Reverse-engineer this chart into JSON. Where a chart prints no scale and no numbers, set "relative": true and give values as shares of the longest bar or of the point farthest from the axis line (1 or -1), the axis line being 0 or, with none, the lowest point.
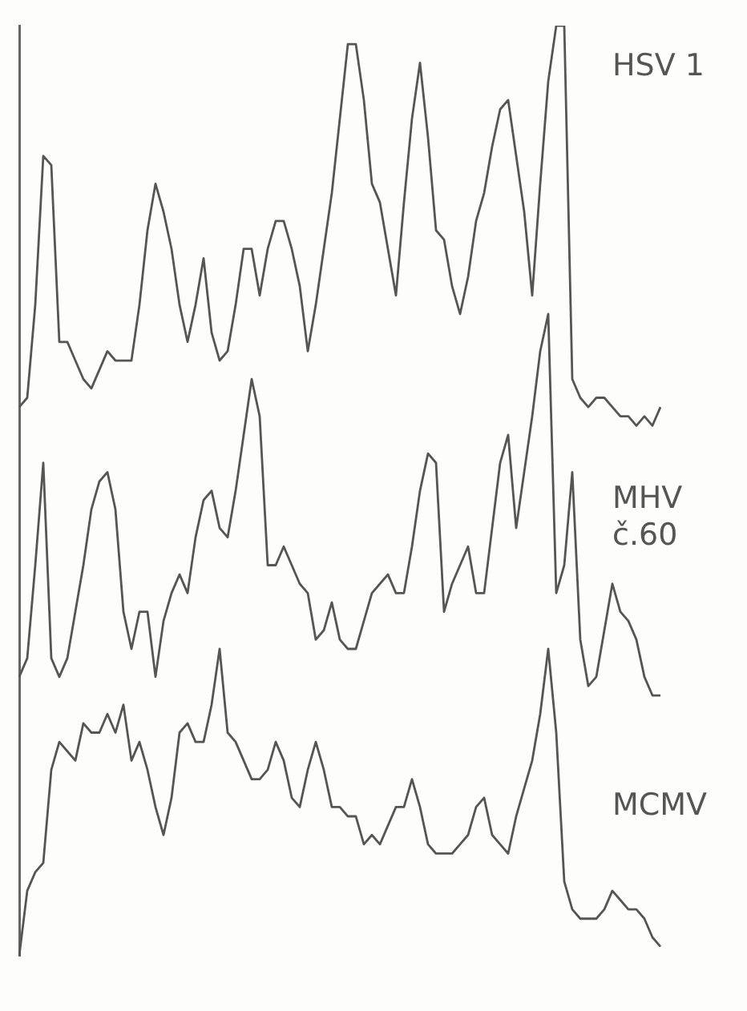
{
  "chart_data": {
    "type": "line",
    "relative": true,
    "grid": false,
    "legend": false,
    "marker": "none",
    "line_style": "solid",
    "categories": [
      null,
      null,
      null,
      null,
      null,
      null,
      null,
      null,
      null,
      null,
      null,
      null,
      null,
      null,
      null,
      null,
      null,
      null,
      null,
      null,
      null,
      null,
      null,
      null,
      null,
      null,
      null,
      null,
      null,
      null,
      null,
      null,
      null,
      null,
      null,
      null,
      null,
      null,
      null,
      null,
      null,
      null,
      null,
      null,
      null,
      null,
      null,
      null,
      null,
      null,
      null,
      null,
      null,
      null,
      null,
      null,
      null,
      null,
      null,
      null,
      null,
      null,
      null,
      null,
      null,
      null,
      null,
      null,
      null,
      null,
      null,
      null,
      null,
      null,
      null,
      null,
      null,
      null,
      null,
      null,
      null
    ],
    "series": [
      {
        "name": "HSV 1",
        "color": "#555555",
        "values": [
          0.59,
          0.6,
          0.7,
          0.86,
          0.85,
          0.66,
          0.66,
          0.64,
          0.62,
          0.61,
          0.63,
          0.65,
          0.64,
          0.64,
          0.64,
          0.7,
          0.78,
          0.83,
          0.8,
          0.76,
          0.7,
          0.66,
          0.7,
          0.75,
          0.67,
          0.64,
          0.65,
          0.7,
          0.76,
          0.76,
          0.71,
          0.76,
          0.79,
          0.79,
          0.76,
          0.72,
          0.65,
          0.7,
          0.76,
          0.82,
          0.9,
          0.98,
          0.98,
          0.92,
          0.83,
          0.81,
          0.76,
          0.71,
          0.81,
          0.9,
          0.96,
          0.88,
          0.78,
          0.77,
          0.72,
          0.69,
          0.73,
          0.79,
          0.82,
          0.87,
          0.91,
          0.92,
          0.86,
          0.8,
          0.71,
          0.83,
          0.94,
          1,
          1,
          0.62,
          0.6,
          0.59,
          0.6,
          0.6,
          0.59,
          0.58,
          0.58,
          0.57,
          0.58,
          0.57,
          0.59
        ]
      },
      {
        "name": "MHV č.60",
        "color": "#555555",
        "values": [
          0.3,
          0.32,
          0.42,
          0.53,
          0.32,
          0.3,
          0.32,
          0.37,
          0.42,
          0.48,
          0.51,
          0.52,
          0.48,
          0.37,
          0.33,
          0.37,
          0.37,
          0.3,
          0.36,
          0.39,
          0.41,
          0.39,
          0.45,
          0.49,
          0.5,
          0.46,
          0.45,
          0.5,
          0.56,
          0.62,
          0.58,
          0.42,
          0.42,
          0.44,
          0.42,
          0.4,
          0.39,
          0.34,
          0.35,
          0.38,
          0.34,
          0.33,
          0.33,
          0.36,
          0.39,
          0.4,
          0.41,
          0.39,
          0.39,
          0.44,
          0.5,
          0.54,
          0.53,
          0.37,
          0.4,
          0.42,
          0.44,
          0.39,
          0.39,
          0.46,
          0.53,
          0.56,
          0.46,
          0.52,
          0.58,
          0.65,
          0.69,
          0.39,
          0.42,
          0.52,
          0.34,
          0.29,
          0.3,
          0.35,
          0.4,
          0.37,
          0.36,
          0.34,
          0.3,
          0.28,
          0.28
        ]
      },
      {
        "name": "MCMV",
        "color": "#555555",
        "values": [
          0,
          0.07,
          0.09,
          0.1,
          0.2,
          0.23,
          0.22,
          0.21,
          0.25,
          0.24,
          0.24,
          0.26,
          0.24,
          0.27,
          0.21,
          0.23,
          0.2,
          0.16,
          0.13,
          0.17,
          0.24,
          0.25,
          0.23,
          0.23,
          0.27,
          0.33,
          0.24,
          0.23,
          0.21,
          0.19,
          0.19,
          0.2,
          0.23,
          0.21,
          0.17,
          0.16,
          0.2,
          0.23,
          0.2,
          0.16,
          0.16,
          0.15,
          0.15,
          0.12,
          0.13,
          0.12,
          0.14,
          0.16,
          0.16,
          0.19,
          0.16,
          0.12,
          0.11,
          0.11,
          0.11,
          0.12,
          0.13,
          0.16,
          0.17,
          0.13,
          0.12,
          0.11,
          0.15,
          0.18,
          0.21,
          0.26,
          0.33,
          0.24,
          0.08,
          0.05,
          0.04,
          0.04,
          0.04,
          0.05,
          0.07,
          0.06,
          0.05,
          0.05,
          0.04,
          0.02,
          0.01
        ]
      }
    ]
  }
}
